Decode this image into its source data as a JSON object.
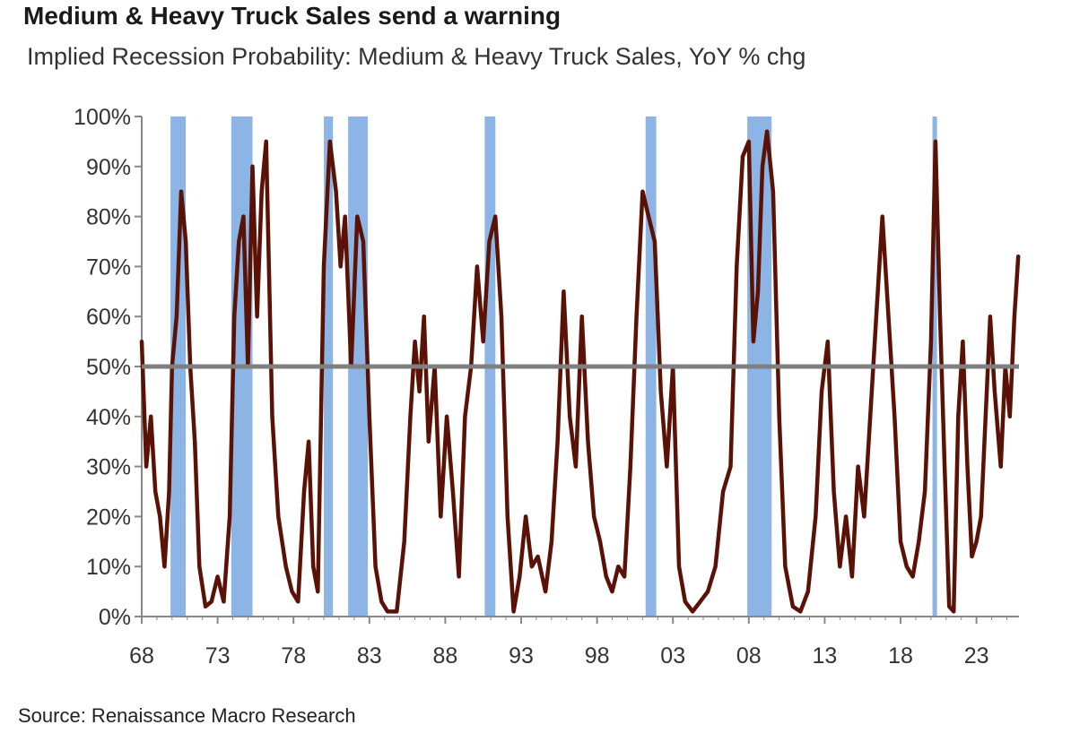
{
  "chart_data": {
    "type": "line",
    "title": "Medium & Heavy Truck Sales send a warning",
    "subtitle": "Implied Recession Probability: Medium & Heavy Truck Sales, YoY % chg",
    "source": "Source: Renaissance Macro Research",
    "y_ticks": [
      "0%",
      "10%",
      "20%",
      "30%",
      "40%",
      "50%",
      "60%",
      "70%",
      "80%",
      "90%",
      "100%"
    ],
    "x_ticks": [
      "68",
      "73",
      "78",
      "83",
      "88",
      "93",
      "98",
      "03",
      "08",
      "13",
      "18",
      "23"
    ],
    "xlim": [
      1968,
      2025.8
    ],
    "ylim": [
      0,
      100
    ],
    "threshold": 50,
    "grid": false,
    "colors": {
      "line": "#5a1206",
      "recession": "#8cb4e4",
      "threshold": "#7f7f7f",
      "axis": "#888888"
    },
    "recessions": [
      [
        1969.9,
        1970.9
      ],
      [
        1973.9,
        1975.3
      ],
      [
        1980.0,
        1980.6
      ],
      [
        1981.6,
        1982.9
      ],
      [
        1990.6,
        1991.3
      ],
      [
        2001.2,
        2001.9
      ],
      [
        2007.9,
        2009.5
      ],
      [
        2020.1,
        2020.4
      ]
    ],
    "series": [
      {
        "values": [
          [
            1968.0,
            55
          ],
          [
            1968.3,
            30
          ],
          [
            1968.6,
            40
          ],
          [
            1968.9,
            25
          ],
          [
            1969.2,
            20
          ],
          [
            1969.5,
            10
          ],
          [
            1969.8,
            25
          ],
          [
            1970.0,
            50
          ],
          [
            1970.3,
            60
          ],
          [
            1970.6,
            85
          ],
          [
            1970.9,
            75
          ],
          [
            1971.2,
            50
          ],
          [
            1971.5,
            35
          ],
          [
            1971.8,
            10
          ],
          [
            1972.2,
            2
          ],
          [
            1972.6,
            3
          ],
          [
            1973.0,
            8
          ],
          [
            1973.4,
            3
          ],
          [
            1973.8,
            20
          ],
          [
            1974.1,
            60
          ],
          [
            1974.4,
            75
          ],
          [
            1974.7,
            80
          ],
          [
            1975.0,
            50
          ],
          [
            1975.3,
            90
          ],
          [
            1975.6,
            60
          ],
          [
            1975.9,
            85
          ],
          [
            1976.2,
            95
          ],
          [
            1976.6,
            40
          ],
          [
            1977.0,
            20
          ],
          [
            1977.5,
            10
          ],
          [
            1977.9,
            5
          ],
          [
            1978.3,
            3
          ],
          [
            1978.7,
            25
          ],
          [
            1979.0,
            35
          ],
          [
            1979.3,
            10
          ],
          [
            1979.6,
            5
          ],
          [
            1980.0,
            70
          ],
          [
            1980.4,
            95
          ],
          [
            1980.8,
            85
          ],
          [
            1981.1,
            70
          ],
          [
            1981.4,
            80
          ],
          [
            1981.8,
            50
          ],
          [
            1982.2,
            80
          ],
          [
            1982.6,
            75
          ],
          [
            1983.0,
            40
          ],
          [
            1983.4,
            10
          ],
          [
            1983.8,
            3
          ],
          [
            1984.2,
            1
          ],
          [
            1984.8,
            1
          ],
          [
            1985.3,
            15
          ],
          [
            1985.7,
            40
          ],
          [
            1986.0,
            55
          ],
          [
            1986.3,
            45
          ],
          [
            1986.6,
            60
          ],
          [
            1986.9,
            35
          ],
          [
            1987.3,
            50
          ],
          [
            1987.7,
            20
          ],
          [
            1988.1,
            40
          ],
          [
            1988.5,
            25
          ],
          [
            1988.9,
            8
          ],
          [
            1989.3,
            40
          ],
          [
            1989.7,
            50
          ],
          [
            1990.1,
            70
          ],
          [
            1990.5,
            55
          ],
          [
            1990.9,
            75
          ],
          [
            1991.3,
            80
          ],
          [
            1991.7,
            60
          ],
          [
            1992.1,
            20
          ],
          [
            1992.5,
            1
          ],
          [
            1992.9,
            8
          ],
          [
            1993.3,
            20
          ],
          [
            1993.7,
            10
          ],
          [
            1994.1,
            12
          ],
          [
            1994.6,
            5
          ],
          [
            1995.0,
            15
          ],
          [
            1995.4,
            35
          ],
          [
            1995.8,
            65
          ],
          [
            1996.2,
            40
          ],
          [
            1996.6,
            30
          ],
          [
            1997.0,
            60
          ],
          [
            1997.4,
            35
          ],
          [
            1997.8,
            20
          ],
          [
            1998.2,
            15
          ],
          [
            1998.6,
            8
          ],
          [
            1999.0,
            5
          ],
          [
            1999.4,
            10
          ],
          [
            1999.8,
            8
          ],
          [
            2000.2,
            30
          ],
          [
            2000.6,
            60
          ],
          [
            2001.0,
            85
          ],
          [
            2001.4,
            80
          ],
          [
            2001.8,
            75
          ],
          [
            2002.2,
            45
          ],
          [
            2002.6,
            30
          ],
          [
            2003.0,
            50
          ],
          [
            2003.4,
            10
          ],
          [
            2003.8,
            3
          ],
          [
            2004.3,
            1
          ],
          [
            2004.8,
            3
          ],
          [
            2005.3,
            5
          ],
          [
            2005.8,
            10
          ],
          [
            2006.3,
            25
          ],
          [
            2006.8,
            30
          ],
          [
            2007.2,
            70
          ],
          [
            2007.6,
            92
          ],
          [
            2008.0,
            95
          ],
          [
            2008.3,
            55
          ],
          [
            2008.6,
            65
          ],
          [
            2008.9,
            90
          ],
          [
            2009.2,
            97
          ],
          [
            2009.6,
            85
          ],
          [
            2010.0,
            40
          ],
          [
            2010.4,
            10
          ],
          [
            2010.9,
            2
          ],
          [
            2011.4,
            1
          ],
          [
            2011.9,
            5
          ],
          [
            2012.4,
            20
          ],
          [
            2012.8,
            45
          ],
          [
            2013.2,
            55
          ],
          [
            2013.6,
            25
          ],
          [
            2014.0,
            10
          ],
          [
            2014.4,
            20
          ],
          [
            2014.8,
            8
          ],
          [
            2015.2,
            30
          ],
          [
            2015.6,
            20
          ],
          [
            2016.0,
            40
          ],
          [
            2016.4,
            60
          ],
          [
            2016.8,
            80
          ],
          [
            2017.2,
            60
          ],
          [
            2017.6,
            40
          ],
          [
            2018.0,
            15
          ],
          [
            2018.4,
            10
          ],
          [
            2018.8,
            8
          ],
          [
            2019.2,
            15
          ],
          [
            2019.6,
            25
          ],
          [
            2020.0,
            55
          ],
          [
            2020.3,
            95
          ],
          [
            2020.6,
            60
          ],
          [
            2020.9,
            30
          ],
          [
            2021.2,
            2
          ],
          [
            2021.5,
            1
          ],
          [
            2021.8,
            40
          ],
          [
            2022.1,
            55
          ],
          [
            2022.4,
            30
          ],
          [
            2022.7,
            12
          ],
          [
            2023.0,
            15
          ],
          [
            2023.3,
            20
          ],
          [
            2023.6,
            40
          ],
          [
            2023.9,
            60
          ],
          [
            2024.2,
            45
          ],
          [
            2024.6,
            30
          ],
          [
            2024.9,
            50
          ],
          [
            2025.2,
            40
          ],
          [
            2025.5,
            60
          ],
          [
            2025.75,
            72
          ]
        ]
      }
    ]
  }
}
